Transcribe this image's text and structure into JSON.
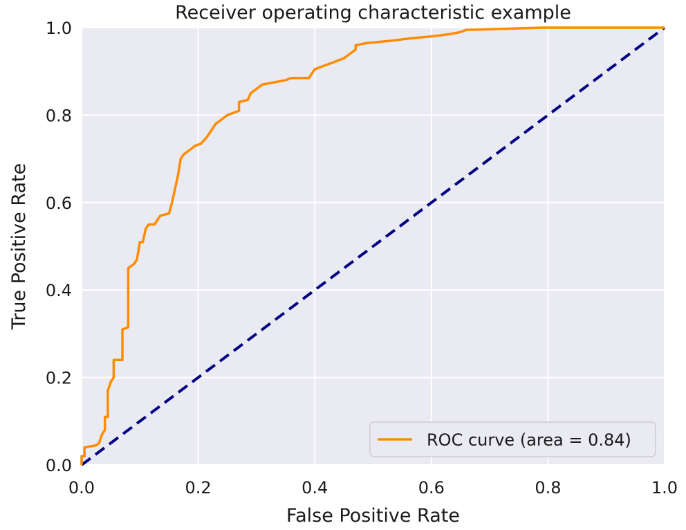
{
  "chart_data": {
    "type": "line",
    "title": "Receiver operating characteristic example",
    "xlabel": "False Positive Rate",
    "ylabel": "True Positive Rate",
    "xlim": [
      0.0,
      1.0
    ],
    "ylim": [
      0.0,
      1.0
    ],
    "xticks": [
      "0.0",
      "0.2",
      "0.4",
      "0.6",
      "0.8",
      "1.0"
    ],
    "yticks": [
      "0.0",
      "0.2",
      "0.4",
      "0.6",
      "0.8",
      "1.0"
    ],
    "grid": true,
    "legend_position": "lower-right",
    "background_color": "#eaeaf2",
    "series": [
      {
        "name": "ROC curve (area = 0.84)",
        "color": "#ff8c00",
        "style": "solid",
        "x": [
          0.0,
          0.0,
          0.005,
          0.005,
          0.025,
          0.03,
          0.035,
          0.04,
          0.04,
          0.045,
          0.045,
          0.05,
          0.055,
          0.055,
          0.06,
          0.07,
          0.07,
          0.08,
          0.08,
          0.09,
          0.095,
          0.1,
          0.105,
          0.11,
          0.115,
          0.125,
          0.135,
          0.15,
          0.155,
          0.16,
          0.165,
          0.17,
          0.175,
          0.185,
          0.195,
          0.205,
          0.215,
          0.225,
          0.23,
          0.24,
          0.25,
          0.27,
          0.27,
          0.285,
          0.29,
          0.3,
          0.31,
          0.33,
          0.35,
          0.36,
          0.39,
          0.4,
          0.41,
          0.43,
          0.44,
          0.45,
          0.47,
          0.47,
          0.49,
          0.53,
          0.56,
          0.6,
          0.63,
          0.65,
          0.66,
          0.79,
          1.0
        ],
        "y": [
          0.0,
          0.02,
          0.02,
          0.04,
          0.045,
          0.05,
          0.07,
          0.08,
          0.11,
          0.11,
          0.17,
          0.19,
          0.2,
          0.24,
          0.24,
          0.24,
          0.31,
          0.315,
          0.45,
          0.46,
          0.47,
          0.51,
          0.51,
          0.54,
          0.55,
          0.55,
          0.57,
          0.575,
          0.6,
          0.63,
          0.66,
          0.7,
          0.71,
          0.72,
          0.73,
          0.735,
          0.75,
          0.77,
          0.78,
          0.79,
          0.8,
          0.81,
          0.83,
          0.835,
          0.85,
          0.86,
          0.87,
          0.875,
          0.88,
          0.885,
          0.885,
          0.905,
          0.91,
          0.92,
          0.925,
          0.93,
          0.95,
          0.96,
          0.965,
          0.97,
          0.975,
          0.98,
          0.985,
          0.99,
          0.995,
          1.0,
          1.0
        ]
      },
      {
        "name": "",
        "color": "#000080",
        "style": "dashed",
        "x": [
          0.0,
          1.0
        ],
        "y": [
          0.0,
          1.0
        ]
      }
    ]
  }
}
